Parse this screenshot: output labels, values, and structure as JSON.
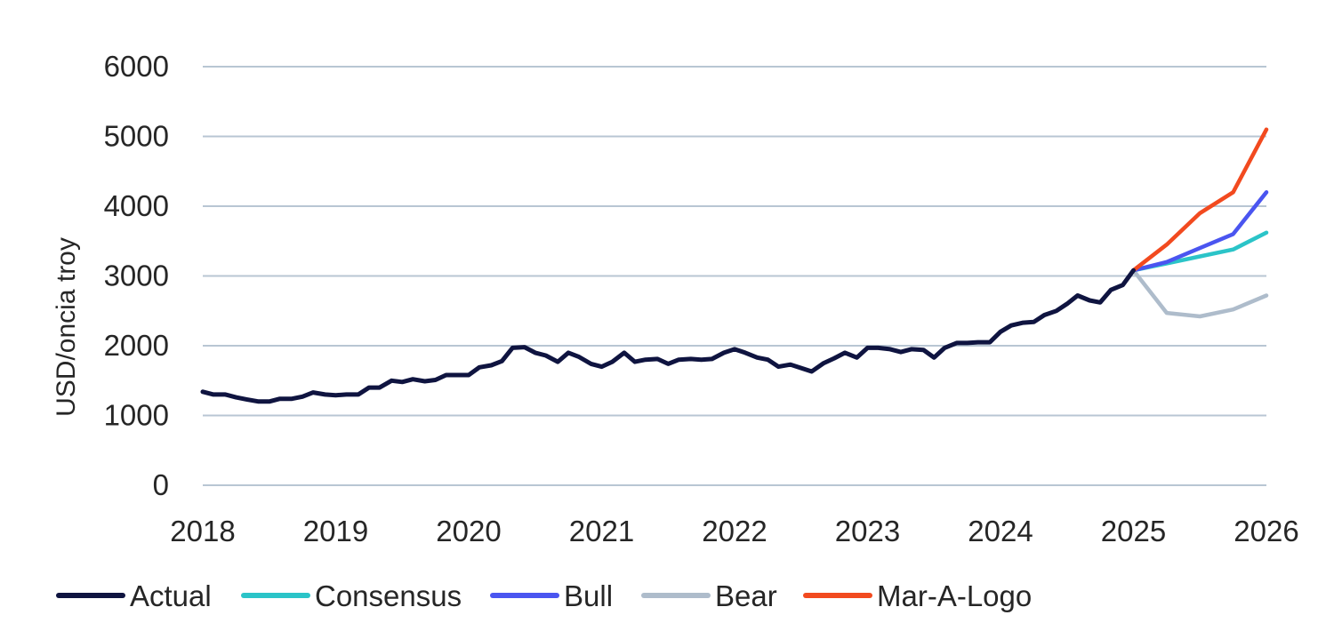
{
  "chart_data": {
    "type": "line",
    "title": "",
    "xlabel": "",
    "ylabel": "USD/oncia troy",
    "xlim": [
      2018,
      2026
    ],
    "ylim": [
      0,
      6000
    ],
    "x_ticks": [
      "2018",
      "2019",
      "2020",
      "2021",
      "2022",
      "2023",
      "2024",
      "2025",
      "2026"
    ],
    "y_ticks": [
      "0",
      "1000",
      "2000",
      "3000",
      "4000",
      "5000",
      "6000"
    ],
    "grid": true,
    "legend_position": "bottom",
    "colors": {
      "Actual": "#0f1440",
      "Consensus": "#2bc4c8",
      "Bull": "#4a55f0",
      "Bear": "#aebccb",
      "Mar-A-Logo": "#f24a1f",
      "grid": "#b8c6d3"
    },
    "series": [
      {
        "name": "Actual",
        "x": [
          2018.0,
          2018.08,
          2018.17,
          2018.25,
          2018.33,
          2018.42,
          2018.5,
          2018.58,
          2018.67,
          2018.75,
          2018.83,
          2018.92,
          2019.0,
          2019.08,
          2019.17,
          2019.25,
          2019.33,
          2019.42,
          2019.5,
          2019.58,
          2019.67,
          2019.75,
          2019.83,
          2019.92,
          2020.0,
          2020.08,
          2020.17,
          2020.25,
          2020.33,
          2020.42,
          2020.5,
          2020.58,
          2020.67,
          2020.75,
          2020.83,
          2020.92,
          2021.0,
          2021.08,
          2021.17,
          2021.25,
          2021.33,
          2021.42,
          2021.5,
          2021.58,
          2021.67,
          2021.75,
          2021.83,
          2021.92,
          2022.0,
          2022.08,
          2022.17,
          2022.25,
          2022.33,
          2022.42,
          2022.5,
          2022.58,
          2022.67,
          2022.75,
          2022.83,
          2022.92,
          2023.0,
          2023.08,
          2023.17,
          2023.25,
          2023.33,
          2023.42,
          2023.5,
          2023.58,
          2023.67,
          2023.75,
          2023.83,
          2023.92,
          2024.0,
          2024.08,
          2024.17,
          2024.25,
          2024.33,
          2024.42,
          2024.5,
          2024.58,
          2024.67,
          2024.75,
          2024.83,
          2024.92,
          2025.0
        ],
        "values": [
          1340,
          1300,
          1300,
          1260,
          1230,
          1200,
          1200,
          1240,
          1240,
          1270,
          1330,
          1300,
          1290,
          1300,
          1300,
          1400,
          1400,
          1500,
          1480,
          1520,
          1490,
          1510,
          1580,
          1580,
          1580,
          1690,
          1720,
          1780,
          1970,
          1980,
          1900,
          1860,
          1770,
          1900,
          1840,
          1740,
          1700,
          1770,
          1900,
          1770,
          1800,
          1810,
          1740,
          1800,
          1810,
          1800,
          1810,
          1900,
          1950,
          1900,
          1830,
          1800,
          1700,
          1730,
          1680,
          1630,
          1750,
          1820,
          1900,
          1830,
          1970,
          1970,
          1950,
          1910,
          1950,
          1940,
          1830,
          1970,
          2040,
          2040,
          2050,
          2050,
          2200,
          2290,
          2330,
          2340,
          2440,
          2500,
          2600,
          2720,
          2650,
          2620,
          2800,
          2870,
          3080
        ]
      },
      {
        "name": "Consensus",
        "x": [
          2025.0,
          2025.25,
          2025.5,
          2025.75,
          2026.0
        ],
        "values": [
          3080,
          3180,
          3280,
          3380,
          3620
        ]
      },
      {
        "name": "Bull",
        "x": [
          2025.0,
          2025.25,
          2025.5,
          2025.75,
          2026.0
        ],
        "values": [
          3080,
          3200,
          3400,
          3600,
          4200
        ]
      },
      {
        "name": "Bear",
        "x": [
          2025.0,
          2025.25,
          2025.5,
          2025.75,
          2026.0
        ],
        "values": [
          3080,
          2470,
          2420,
          2520,
          2720
        ]
      },
      {
        "name": "Mar-A-Logo",
        "x": [
          2025.0,
          2025.25,
          2025.5,
          2025.75,
          2026.0
        ],
        "values": [
          3080,
          3450,
          3900,
          4200,
          5100
        ]
      }
    ]
  }
}
